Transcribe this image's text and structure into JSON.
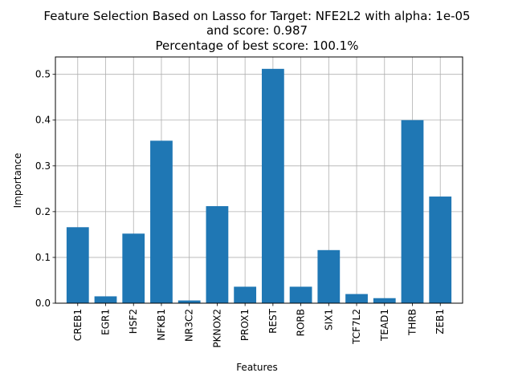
{
  "chart_data": {
    "type": "bar",
    "title_lines": [
      "Feature Selection Based on Lasso for Target: NFE2L2 with alpha: 1e-05",
      "and score: 0.987",
      "Percentage of best score: 100.1%"
    ],
    "xlabel": "Features",
    "ylabel": "Importance",
    "categories": [
      "CREB1",
      "EGR1",
      "HSF2",
      "NFKB1",
      "NR3C2",
      "PKNOX2",
      "PROX1",
      "REST",
      "RORB",
      "SIX1",
      "TCF7L2",
      "TEAD1",
      "THRB",
      "ZEB1"
    ],
    "values": [
      0.166,
      0.015,
      0.152,
      0.355,
      0.006,
      0.212,
      0.036,
      0.512,
      0.036,
      0.116,
      0.02,
      0.011,
      0.4,
      0.233
    ],
    "yticks": [
      "0.0",
      "0.1",
      "0.2",
      "0.3",
      "0.4",
      "0.5"
    ],
    "ylim": [
      0,
      0.538
    ],
    "grid": true,
    "bar_color": "#1f77b4",
    "grid_color": "#b0b0b0"
  }
}
